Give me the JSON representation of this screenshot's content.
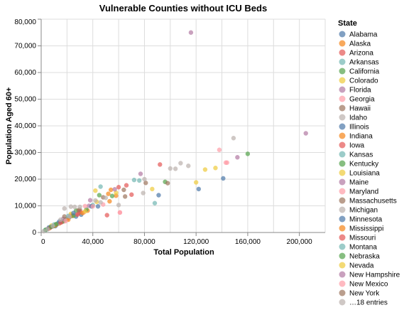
{
  "chart_data": {
    "type": "scatter",
    "title": "Vulnerable Counties without ICU Beds",
    "xlabel": "Total Population",
    "ylabel": "Population Aged 60+",
    "xlim": [
      0,
      220000
    ],
    "ylim": [
      0,
      80000
    ],
    "x_ticks": [
      0,
      40000,
      80000,
      120000,
      160000,
      200000
    ],
    "x_tick_labels": [
      "0",
      "40,000",
      "80,000",
      "120,000",
      "160,000",
      "200,000"
    ],
    "y_ticks": [
      0,
      10000,
      20000,
      30000,
      40000,
      50000,
      60000,
      70000,
      80000
    ],
    "y_tick_labels": [
      "0",
      "10,000",
      "20,000",
      "30,000",
      "40,000",
      "50,000",
      "60,000",
      "70,000",
      "80,000"
    ],
    "grid": true,
    "legend": {
      "title": "State",
      "placement": "right",
      "overflow_label": "…18 entries"
    },
    "series": [
      {
        "name": "Alabama",
        "color": "#4c78a8",
        "points": [
          [
            12000,
            3000
          ],
          [
            22000,
            5800
          ],
          [
            31000,
            6700
          ],
          [
            44000,
            9800
          ],
          [
            27000,
            6000
          ]
        ]
      },
      {
        "name": "Alaska",
        "color": "#f58518",
        "points": [
          [
            6000,
            1500
          ],
          [
            14000,
            3400
          ],
          [
            52000,
            14500
          ],
          [
            23000,
            6500
          ]
        ]
      },
      {
        "name": "Arizona",
        "color": "#e45756",
        "points": [
          [
            70000,
            14200
          ],
          [
            92000,
            25500
          ],
          [
            60000,
            17000
          ],
          [
            29000,
            7200
          ]
        ]
      },
      {
        "name": "Arkansas",
        "color": "#72b7b2",
        "points": [
          [
            15000,
            3800
          ],
          [
            26000,
            6500
          ],
          [
            40000,
            10300
          ],
          [
            72000,
            19700
          ],
          [
            88000,
            11000
          ]
        ]
      },
      {
        "name": "California",
        "color": "#54a24b",
        "points": [
          [
            160000,
            29500
          ],
          [
            27000,
            8200
          ],
          [
            45000,
            14000
          ],
          [
            96000,
            19000
          ]
        ]
      },
      {
        "name": "Colorado",
        "color": "#eeca3b",
        "points": [
          [
            8000,
            2600
          ],
          [
            23000,
            7000
          ],
          [
            43000,
            11500
          ],
          [
            86000,
            16300
          ]
        ]
      },
      {
        "name": "Florida",
        "color": "#b279a2",
        "points": [
          [
            116000,
            75000
          ],
          [
            205000,
            37200
          ],
          [
            152000,
            28200
          ],
          [
            37000,
            10000
          ]
        ]
      },
      {
        "name": "Georgia",
        "color": "#ff9da6",
        "points": [
          [
            18000,
            4200
          ],
          [
            33000,
            7500
          ],
          [
            48000,
            10500
          ],
          [
            61000,
            7500
          ],
          [
            144000,
            26200
          ],
          [
            138000,
            31000
          ]
        ]
      },
      {
        "name": "Hawaii",
        "color": "#9d755d",
        "points": [
          [
            64000,
            16000
          ],
          [
            98000,
            18500
          ],
          [
            30000,
            8500
          ]
        ]
      },
      {
        "name": "Idaho",
        "color": "#bab0ac",
        "points": [
          [
            149000,
            35400
          ],
          [
            108000,
            26000
          ],
          [
            100000,
            24000
          ],
          [
            114000,
            25000
          ],
          [
            18000,
            9000
          ],
          [
            23000,
            9700
          ]
        ]
      },
      {
        "name": "Illinois",
        "color": "#4c78a8",
        "points": [
          [
            141000,
            20300
          ],
          [
            122000,
            16300
          ],
          [
            91000,
            14000
          ],
          [
            11000,
            2400
          ]
        ]
      },
      {
        "name": "Indiana",
        "color": "#f58518",
        "points": [
          [
            24000,
            6200
          ],
          [
            36000,
            8200
          ],
          [
            54000,
            16000
          ],
          [
            58000,
            13800
          ]
        ]
      },
      {
        "name": "Iowa",
        "color": "#e45756",
        "points": [
          [
            5000,
            1300
          ],
          [
            9000,
            2300
          ],
          [
            12000,
            3100
          ],
          [
            16000,
            3900
          ],
          [
            20000,
            5100
          ],
          [
            30000,
            7900
          ]
        ]
      },
      {
        "name": "Kansas",
        "color": "#72b7b2",
        "points": [
          [
            4000,
            1100
          ],
          [
            8000,
            2200
          ],
          [
            13000,
            3500
          ],
          [
            19000,
            5000
          ],
          [
            46000,
            17200
          ]
        ]
      },
      {
        "name": "Kentucky",
        "color": "#54a24b",
        "points": [
          [
            10000,
            2500
          ],
          [
            17000,
            4200
          ],
          [
            25000,
            6300
          ],
          [
            35000,
            8600
          ],
          [
            55000,
            13700
          ]
        ]
      },
      {
        "name": "Louisiana",
        "color": "#eeca3b",
        "points": [
          [
            127000,
            23600
          ],
          [
            120000,
            18800
          ],
          [
            135000,
            24200
          ],
          [
            42000,
            15700
          ]
        ]
      },
      {
        "name": "Maine",
        "color": "#b279a2",
        "points": [
          [
            17000,
            5100
          ],
          [
            38000,
            12100
          ],
          [
            77000,
            22000
          ]
        ]
      },
      {
        "name": "Maryland",
        "color": "#ff9da6",
        "points": [
          [
            34000,
            9900
          ],
          [
            61000,
            7500
          ],
          [
            143000,
            26200
          ]
        ]
      },
      {
        "name": "Massachusetts",
        "color": "#9d755d",
        "points": [
          [
            18000,
            6000
          ],
          [
            65000,
            13500
          ]
        ]
      },
      {
        "name": "Michigan",
        "color": "#bab0ac",
        "points": [
          [
            26000,
            9600
          ],
          [
            46000,
            11300
          ],
          [
            79000,
            14800
          ],
          [
            104000,
            23900
          ]
        ]
      },
      {
        "name": "Minnesota",
        "color": "#4c78a8",
        "points": [
          [
            6000,
            1900
          ],
          [
            14000,
            4100
          ],
          [
            25000,
            7300
          ],
          [
            39000,
            9800
          ]
        ]
      },
      {
        "name": "Mississippi",
        "color": "#f58518",
        "points": [
          [
            11000,
            2700
          ],
          [
            21000,
            4800
          ],
          [
            32000,
            7300
          ],
          [
            53000,
            11700
          ]
        ]
      },
      {
        "name": "Missouri",
        "color": "#e45756",
        "points": [
          [
            7000,
            1800
          ],
          [
            15000,
            3700
          ],
          [
            28000,
            6700
          ],
          [
            51000,
            6500
          ],
          [
            66000,
            17700
          ]
        ]
      },
      {
        "name": "Montana",
        "color": "#72b7b2",
        "points": [
          [
            3000,
            900
          ],
          [
            10000,
            3000
          ],
          [
            21000,
            6200
          ],
          [
            76000,
            19500
          ]
        ]
      },
      {
        "name": "Nebraska",
        "color": "#54a24b",
        "points": [
          [
            3500,
            1000
          ],
          [
            7500,
            2100
          ],
          [
            11500,
            3100
          ]
        ]
      },
      {
        "name": "Nevada",
        "color": "#eeca3b",
        "points": [
          [
            34000,
            7900
          ],
          [
            58000,
            14900
          ]
        ]
      },
      {
        "name": "New Hampshire",
        "color": "#b279a2",
        "points": [
          [
            57000,
            16200
          ]
        ]
      },
      {
        "name": "New Mexico",
        "color": "#ff9da6",
        "points": [
          [
            19000,
            4300
          ],
          [
            40000,
            9800
          ]
        ]
      },
      {
        "name": "New York",
        "color": "#9d755d",
        "points": [
          [
            29000,
            8400
          ],
          [
            48000,
            13200
          ],
          [
            81000,
            18600
          ]
        ]
      },
      {
        "name": "…18 entries",
        "color": "#bab0ac",
        "points": [
          [
            2000,
            500
          ],
          [
            5000,
            1200
          ],
          [
            9000,
            2500
          ],
          [
            15000,
            4800
          ],
          [
            22000,
            6000
          ],
          [
            30000,
            9600
          ],
          [
            42000,
            12000
          ],
          [
            50000,
            13000
          ],
          [
            60000,
            10300
          ],
          [
            80000,
            20000
          ]
        ]
      }
    ]
  }
}
